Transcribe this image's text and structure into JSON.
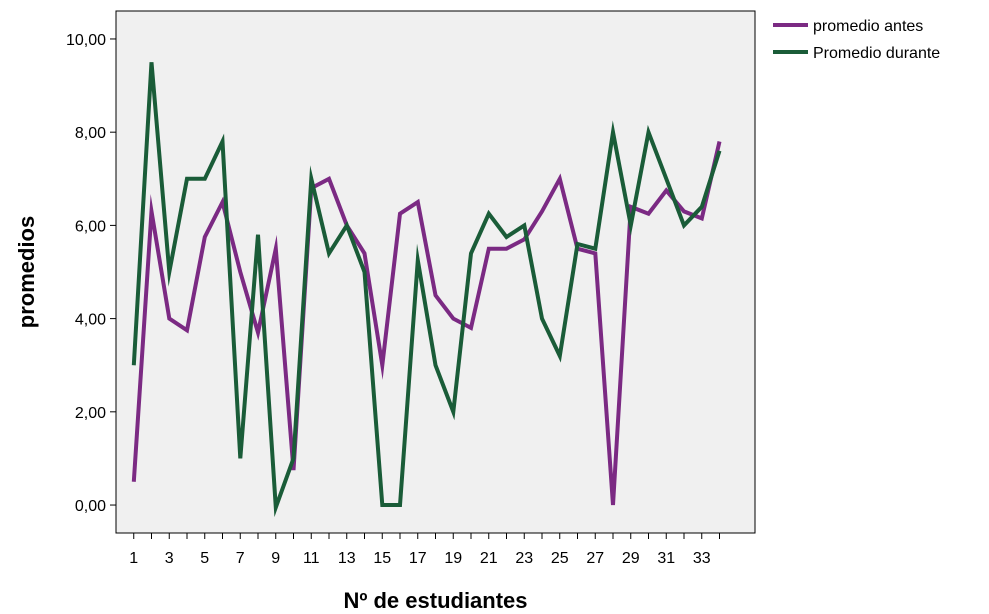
{
  "chart_data": {
    "type": "line",
    "xlabel": "Nº de estudiantes",
    "ylabel": "promedios",
    "ylim": [
      -0.6,
      10.6
    ],
    "xlim": [
      0,
      36
    ],
    "x": [
      1,
      2,
      3,
      4,
      5,
      6,
      7,
      8,
      9,
      10,
      11,
      12,
      13,
      14,
      15,
      16,
      17,
      18,
      19,
      20,
      21,
      22,
      23,
      24,
      25,
      26,
      27,
      28,
      29,
      30,
      31,
      32,
      33,
      34
    ],
    "x_ticks": [
      1,
      3,
      5,
      7,
      9,
      11,
      13,
      15,
      17,
      19,
      21,
      23,
      25,
      27,
      29,
      31,
      33
    ],
    "y_ticks": [
      0,
      2,
      4,
      6,
      8,
      10
    ],
    "y_tick_labels": [
      "0,00",
      "2,00",
      "4,00",
      "6,00",
      "8,00",
      "10,00"
    ],
    "grid": false,
    "legend_position": "top-right",
    "background_color": "#f0f0f0",
    "series": [
      {
        "name": "promedio antes",
        "color": "#7b2a83",
        "values": [
          0.5,
          6.3,
          4.0,
          3.75,
          5.75,
          6.5,
          5.0,
          3.7,
          5.5,
          0.75,
          6.8,
          7.0,
          6.0,
          5.4,
          3.0,
          6.25,
          6.5,
          4.5,
          4.0,
          3.8,
          5.5,
          5.5,
          5.7,
          6.3,
          7.0,
          5.5,
          5.4,
          0.0,
          6.4,
          6.25,
          6.75,
          6.3,
          6.15,
          7.8
        ]
      },
      {
        "name": "Promedio durante",
        "color": "#1a5c38",
        "values": [
          3.0,
          9.5,
          5.0,
          7.0,
          7.0,
          7.8,
          1.0,
          5.8,
          -0.05,
          1.0,
          7.0,
          5.4,
          6.0,
          5.0,
          0.0,
          0.0,
          5.25,
          3.0,
          2.0,
          5.4,
          6.25,
          5.75,
          6.0,
          4.0,
          3.2,
          5.6,
          5.5,
          8.0,
          6.0,
          8.0,
          7.0,
          6.0,
          6.4,
          7.6
        ]
      }
    ]
  }
}
